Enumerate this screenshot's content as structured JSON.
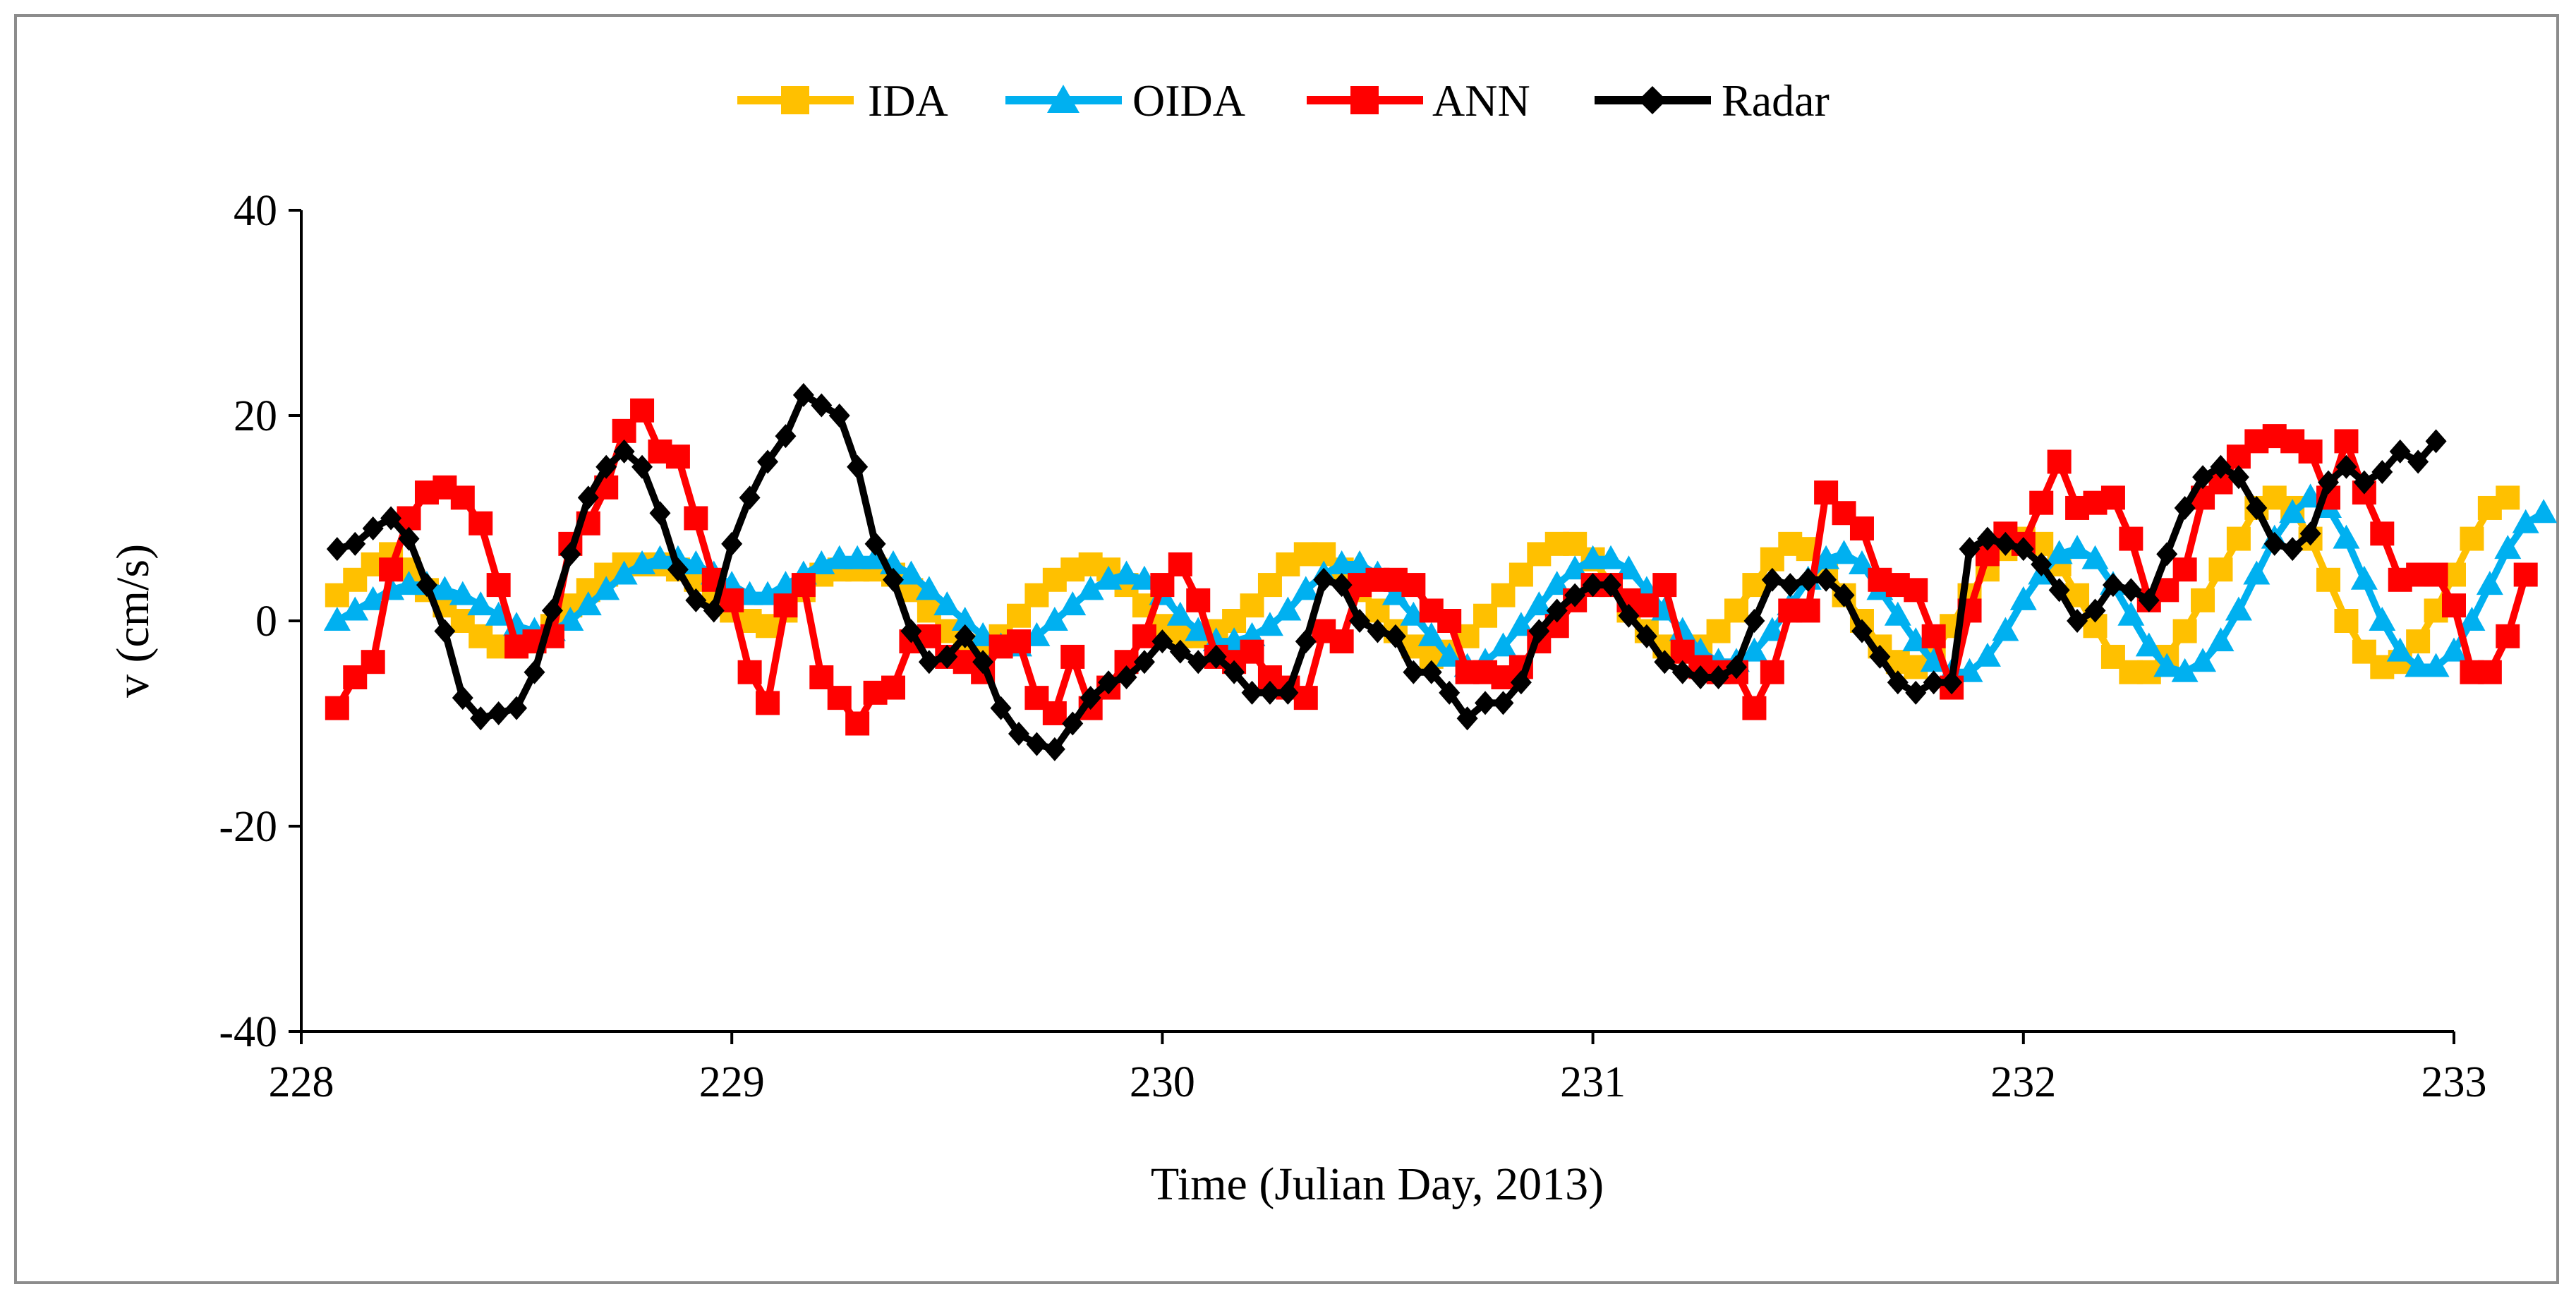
{
  "chart_data": {
    "type": "line",
    "title": "",
    "xlabel": "Time (Julian Day, 2013)",
    "ylabel": "v (cm/s)",
    "xlim": [
      228,
      233
    ],
    "ylim": [
      -40,
      40
    ],
    "xticks": [
      228,
      229,
      230,
      231,
      232,
      233
    ],
    "yticks": [
      -40,
      -20,
      0,
      20,
      40
    ],
    "xtick_labels": [
      "228",
      "229",
      "230",
      "231",
      "232",
      "233"
    ],
    "ytick_labels": [
      "-40",
      "-20",
      "0",
      "20",
      "40"
    ],
    "grid": false,
    "legend_position": "top-center",
    "x_start": 228.0833,
    "x_step": 0.041667,
    "series": [
      {
        "name": "IDA",
        "color": "#FFC000",
        "marker": "square",
        "values": [
          2.5,
          4,
          5.5,
          6.5,
          5,
          3,
          1.5,
          0,
          -1.5,
          -2.5,
          -2.5,
          -2,
          -0.5,
          1.5,
          3,
          4.5,
          5.5,
          5.5,
          5.5,
          5,
          4,
          2.5,
          1,
          0,
          -0.5,
          1,
          3,
          4.5,
          5,
          5,
          5,
          4.5,
          3,
          1,
          -1,
          -2.5,
          -2.5,
          -1.5,
          0.5,
          2.5,
          4,
          5,
          5.5,
          5,
          3.5,
          1.5,
          -0.5,
          -1.5,
          -1.5,
          -1,
          0,
          1.5,
          3.5,
          5.5,
          6.5,
          6.5,
          5,
          3,
          1,
          -1,
          -2.5,
          -3.5,
          -3,
          -1.5,
          0.5,
          2.5,
          4.5,
          6.5,
          7.5,
          7.5,
          6,
          3.5,
          1,
          -1,
          -2.5,
          -3,
          -2.5,
          -1,
          1,
          3.5,
          6,
          7.5,
          7,
          5,
          2.5,
          0,
          -2.5,
          -4,
          -4.5,
          -3,
          -0.5,
          2.5,
          5,
          7,
          8,
          7.5,
          5.5,
          2.5,
          -0.5,
          -3.5,
          -5,
          -5,
          -3.5,
          -1,
          2,
          5,
          8,
          11,
          12,
          11,
          8,
          4,
          0,
          -3,
          -4.5,
          -4,
          -2,
          1,
          4.5,
          8,
          11,
          12
        ]
      },
      {
        "name": "OIDA",
        "color": "#00B0F0",
        "marker": "triangle",
        "values": [
          0,
          1,
          2,
          3,
          3.5,
          3.5,
          3,
          2.5,
          1.5,
          0.5,
          -0.5,
          -1,
          -1,
          0,
          1.5,
          3,
          4.5,
          5.5,
          6,
          6,
          5.5,
          4.5,
          3.5,
          2.5,
          2.5,
          3.5,
          4.5,
          5.5,
          6,
          6,
          6,
          5.5,
          4.5,
          3,
          1.5,
          0,
          -1.5,
          -2.5,
          -2.5,
          -1.5,
          0,
          1.5,
          3,
          4,
          4.5,
          4,
          2.5,
          0.5,
          -1,
          -2,
          -2,
          -1.5,
          -0.5,
          1,
          3,
          4.5,
          5.5,
          5.5,
          4.5,
          2.5,
          0.5,
          -1.5,
          -3.5,
          -4.5,
          -4,
          -2.5,
          -0.5,
          1.5,
          3.5,
          5,
          6,
          6,
          5,
          3,
          1,
          -1,
          -3,
          -4,
          -4,
          -3,
          -1,
          1.5,
          4,
          6,
          6.5,
          5.5,
          3,
          0.5,
          -2,
          -4,
          -5,
          -5,
          -3.5,
          -1,
          2,
          4.5,
          6.5,
          7,
          6,
          3.5,
          0.5,
          -2.5,
          -4.5,
          -5,
          -4,
          -2,
          1,
          4.5,
          8,
          10.5,
          12,
          11,
          8,
          4,
          0,
          -3,
          -4.5,
          -4.5,
          -3,
          0,
          3.5,
          7,
          9.5,
          10.5
        ]
      },
      {
        "name": "ANN",
        "color": "#FF0000",
        "marker": "square",
        "values": [
          -8.5,
          -5.5,
          -4,
          5,
          10,
          12.5,
          13,
          12,
          9.5,
          3.5,
          -2.5,
          -2,
          -1.5,
          7.5,
          9.5,
          13,
          18.5,
          20.5,
          16.5,
          16,
          10,
          4,
          2,
          -5,
          -8,
          1.5,
          3.5,
          -5.5,
          -7.5,
          -10,
          -7,
          -6.5,
          -2,
          -1.5,
          -3.5,
          -4,
          -5,
          -2.5,
          -2,
          -7.5,
          -9,
          -3.5,
          -8.5,
          -6.5,
          -4,
          -1.5,
          3.5,
          5.5,
          2,
          -3.5,
          -4,
          -3,
          -5.5,
          -6.5,
          -7.5,
          -1,
          -2,
          3.5,
          4,
          4,
          3.5,
          1,
          0,
          -5,
          -5,
          -5.5,
          -4.5,
          -2,
          -0.5,
          2,
          3.5,
          3.5,
          2,
          1.5,
          3.5,
          -3,
          -4.5,
          -5,
          -5,
          -8.5,
          -5,
          1,
          1,
          12.5,
          10.5,
          9,
          4,
          3.5,
          3,
          -1.5,
          -6.5,
          1,
          6.5,
          8.5,
          7.5,
          11.5,
          15.5,
          11,
          11.5,
          12,
          8,
          2,
          3,
          5,
          12,
          13.5,
          16,
          17.5,
          18,
          17.5,
          16.5,
          12,
          17.5,
          12.5,
          8.5,
          4,
          4.5,
          4.5,
          1.5,
          -5,
          -5,
          -1.5,
          4.5
        ]
      },
      {
        "name": "Radar",
        "color": "#000000",
        "marker": "diamond",
        "values": [
          7,
          7.5,
          9,
          10,
          8,
          3.5,
          -1,
          -7.5,
          -9.5,
          -9,
          -8.5,
          -5,
          1,
          6.5,
          12,
          15,
          16.5,
          15,
          10.5,
          5,
          2,
          1,
          7.5,
          12,
          15.5,
          18,
          22,
          21,
          20,
          15,
          7.5,
          4,
          -1,
          -4,
          -3.5,
          -1.5,
          -4,
          -8.5,
          -11,
          -12,
          -12.5,
          -10,
          -7.5,
          -6,
          -5.5,
          -4,
          -2,
          -3,
          -4,
          -3.5,
          -5,
          -7,
          -7,
          -7,
          -2,
          4,
          3.5,
          0,
          -1,
          -1.5,
          -5,
          -5,
          -7,
          -9.5,
          -8,
          -8,
          -6,
          -1,
          1,
          2.5,
          3.5,
          3.5,
          0.5,
          -1.5,
          -4,
          -5,
          -5.5,
          -5.5,
          -4.5,
          0,
          4,
          3.5,
          4,
          4,
          2.5,
          -1,
          -3.5,
          -6,
          -7,
          -6,
          -6,
          7,
          8,
          7.5,
          7,
          5.5,
          3,
          0,
          1,
          3.5,
          3,
          2,
          6.5,
          11,
          14,
          15,
          14,
          11,
          7.5,
          7,
          8.5,
          13.5,
          15,
          13.5,
          14.5,
          16.5,
          15.5,
          17.5
        ]
      }
    ]
  }
}
